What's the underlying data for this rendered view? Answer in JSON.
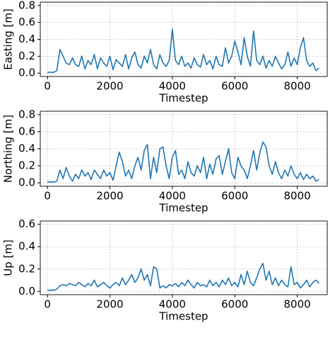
{
  "chart_data": [
    {
      "type": "line",
      "xlabel": "Timestep",
      "ylabel": "Easting [m]",
      "xlim": [
        -230,
        8960
      ],
      "ylim": [
        -0.04,
        0.84
      ],
      "xticks": [
        0,
        2000,
        4000,
        6000,
        8000
      ],
      "yticks": [
        0.0,
        0.2,
        0.4,
        0.6,
        0.8
      ],
      "grid": true,
      "x": [
        0,
        100,
        200,
        300,
        400,
        500,
        600,
        700,
        800,
        900,
        1000,
        1100,
        1200,
        1300,
        1400,
        1500,
        1600,
        1700,
        1800,
        1900,
        2000,
        2100,
        2200,
        2300,
        2400,
        2500,
        2600,
        2700,
        2800,
        2900,
        3000,
        3100,
        3200,
        3300,
        3400,
        3500,
        3600,
        3700,
        3800,
        3900,
        4000,
        4100,
        4200,
        4300,
        4400,
        4500,
        4600,
        4700,
        4800,
        4900,
        5000,
        5100,
        5200,
        5300,
        5400,
        5500,
        5600,
        5700,
        5800,
        5900,
        6000,
        6100,
        6200,
        6300,
        6400,
        6500,
        6600,
        6700,
        6800,
        6900,
        7000,
        7100,
        7200,
        7300,
        7400,
        7500,
        7600,
        7700,
        7800,
        7900,
        8000,
        8100,
        8200,
        8300,
        8400,
        8500,
        8600,
        8700
      ],
      "series": [
        {
          "color": "#1f77b4",
          "values": [
            0.01,
            0.01,
            0.01,
            0.03,
            0.28,
            0.2,
            0.12,
            0.1,
            0.18,
            0.1,
            0.08,
            0.2,
            0.05,
            0.15,
            0.1,
            0.22,
            0.05,
            0.18,
            0.12,
            0.08,
            0.2,
            0.04,
            0.16,
            0.12,
            0.08,
            0.22,
            0.05,
            0.18,
            0.25,
            0.1,
            0.06,
            0.2,
            0.12,
            0.28,
            0.1,
            0.05,
            0.22,
            0.12,
            0.08,
            0.15,
            0.52,
            0.15,
            0.1,
            0.2,
            0.08,
            0.12,
            0.06,
            0.18,
            0.1,
            0.07,
            0.22,
            0.1,
            0.15,
            0.05,
            0.2,
            0.1,
            0.08,
            0.3,
            0.12,
            0.2,
            0.38,
            0.25,
            0.1,
            0.42,
            0.2,
            0.08,
            0.5,
            0.15,
            0.1,
            0.2,
            0.06,
            0.15,
            0.08,
            0.2,
            0.12,
            0.05,
            0.1,
            0.25,
            0.08,
            0.18,
            0.1,
            0.3,
            0.42,
            0.15,
            0.08,
            0.12,
            0.03,
            0.06
          ]
        }
      ]
    },
    {
      "type": "line",
      "xlabel": "Timestep",
      "ylabel": "Northing [m]",
      "xlim": [
        -230,
        8960
      ],
      "ylim": [
        -0.04,
        0.84
      ],
      "xticks": [
        0,
        2000,
        4000,
        6000,
        8000
      ],
      "yticks": [
        0.0,
        0.2,
        0.4,
        0.6,
        0.8
      ],
      "grid": true,
      "x": [
        0,
        100,
        200,
        300,
        400,
        500,
        600,
        700,
        800,
        900,
        1000,
        1100,
        1200,
        1300,
        1400,
        1500,
        1600,
        1700,
        1800,
        1900,
        2000,
        2100,
        2200,
        2300,
        2400,
        2500,
        2600,
        2700,
        2800,
        2900,
        3000,
        3100,
        3200,
        3300,
        3400,
        3500,
        3600,
        3700,
        3800,
        3900,
        4000,
        4100,
        4200,
        4300,
        4400,
        4500,
        4600,
        4700,
        4800,
        4900,
        5000,
        5100,
        5200,
        5300,
        5400,
        5500,
        5600,
        5700,
        5800,
        5900,
        6000,
        6100,
        6200,
        6300,
        6400,
        6500,
        6600,
        6700,
        6800,
        6900,
        7000,
        7100,
        7200,
        7300,
        7400,
        7500,
        7600,
        7700,
        7800,
        7900,
        8000,
        8100,
        8200,
        8300,
        8400,
        8500,
        8600,
        8700
      ],
      "series": [
        {
          "color": "#1f77b4",
          "values": [
            0.01,
            0.01,
            0.01,
            0.02,
            0.15,
            0.05,
            0.18,
            0.08,
            0.02,
            0.1,
            0.05,
            0.15,
            0.08,
            0.12,
            0.04,
            0.15,
            0.1,
            0.05,
            0.15,
            0.08,
            0.12,
            0.03,
            0.2,
            0.36,
            0.25,
            0.08,
            0.15,
            0.05,
            0.2,
            0.3,
            0.15,
            0.38,
            0.45,
            0.05,
            0.3,
            0.12,
            0.4,
            0.42,
            0.2,
            0.05,
            0.3,
            0.38,
            0.1,
            0.15,
            0.05,
            0.25,
            0.12,
            0.08,
            0.2,
            0.12,
            0.3,
            0.05,
            0.22,
            0.1,
            0.28,
            0.32,
            0.1,
            0.25,
            0.4,
            0.12,
            0.05,
            0.3,
            0.2,
            0.15,
            0.05,
            0.2,
            0.38,
            0.15,
            0.35,
            0.48,
            0.42,
            0.2,
            0.1,
            0.25,
            0.12,
            0.05,
            0.15,
            0.08,
            0.2,
            0.1,
            0.05,
            0.12,
            0.04,
            0.1,
            0.05,
            0.08,
            0.02,
            0.04
          ]
        }
      ]
    },
    {
      "type": "line",
      "xlabel": "Timestep",
      "ylabel": "Up [m]",
      "xlim": [
        -230,
        8960
      ],
      "ylim": [
        -0.03,
        0.63
      ],
      "xticks": [
        0,
        2000,
        4000,
        6000,
        8000
      ],
      "yticks": [
        0.0,
        0.2,
        0.4,
        0.6
      ],
      "grid": true,
      "x": [
        0,
        100,
        200,
        300,
        400,
        500,
        600,
        700,
        800,
        900,
        1000,
        1100,
        1200,
        1300,
        1400,
        1500,
        1600,
        1700,
        1800,
        1900,
        2000,
        2100,
        2200,
        2300,
        2400,
        2500,
        2600,
        2700,
        2800,
        2900,
        3000,
        3100,
        3200,
        3300,
        3400,
        3500,
        3600,
        3700,
        3800,
        3900,
        4000,
        4100,
        4200,
        4300,
        4400,
        4500,
        4600,
        4700,
        4800,
        4900,
        5000,
        5100,
        5200,
        5300,
        5400,
        5500,
        5600,
        5700,
        5800,
        5900,
        6000,
        6100,
        6200,
        6300,
        6400,
        6500,
        6600,
        6700,
        6800,
        6900,
        7000,
        7100,
        7200,
        7300,
        7400,
        7500,
        7600,
        7700,
        7800,
        7900,
        8000,
        8100,
        8200,
        8300,
        8400,
        8500,
        8600,
        8700
      ],
      "series": [
        {
          "color": "#1f77b4",
          "values": [
            0.01,
            0.01,
            0.01,
            0.02,
            0.05,
            0.06,
            0.05,
            0.07,
            0.06,
            0.05,
            0.08,
            0.06,
            0.04,
            0.07,
            0.05,
            0.1,
            0.04,
            0.06,
            0.08,
            0.05,
            0.03,
            0.06,
            0.08,
            0.05,
            0.12,
            0.06,
            0.1,
            0.15,
            0.08,
            0.12,
            0.2,
            0.1,
            0.15,
            0.05,
            0.22,
            0.2,
            0.03,
            0.05,
            0.03,
            0.06,
            0.05,
            0.07,
            0.04,
            0.08,
            0.05,
            0.1,
            0.06,
            0.03,
            0.08,
            0.05,
            0.06,
            0.04,
            0.1,
            0.05,
            0.08,
            0.04,
            0.1,
            0.06,
            0.12,
            0.05,
            0.08,
            0.04,
            0.15,
            0.06,
            0.18,
            0.08,
            0.05,
            0.12,
            0.2,
            0.25,
            0.1,
            0.18,
            0.06,
            0.12,
            0.05,
            0.1,
            0.06,
            0.04,
            0.22,
            0.06,
            0.08,
            0.03,
            0.06,
            0.1,
            0.04,
            0.08,
            0.1,
            0.07
          ]
        }
      ]
    }
  ]
}
